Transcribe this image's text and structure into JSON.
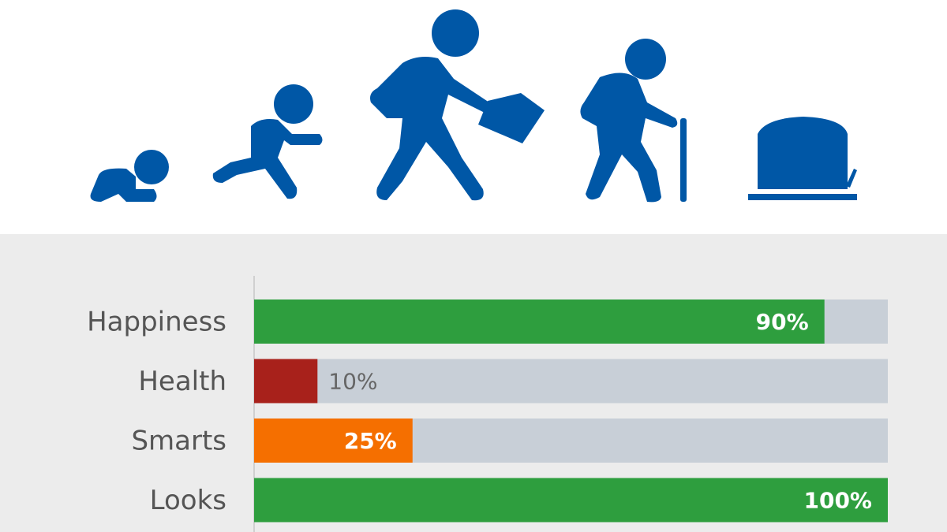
{
  "chart_data": {
    "type": "hbar",
    "categories": [
      "Happiness",
      "Health",
      "Smarts",
      "Looks"
    ],
    "values": [
      90,
      10,
      25,
      100
    ],
    "value_labels": [
      "90%",
      "10%",
      "25%",
      "100%"
    ],
    "colors": [
      "#2e9e3e",
      "#a8211b",
      "#f56f00",
      "#2e9e3e"
    ],
    "track_color": "#c8cfd7",
    "xlim": [
      0,
      100
    ]
  }
}
